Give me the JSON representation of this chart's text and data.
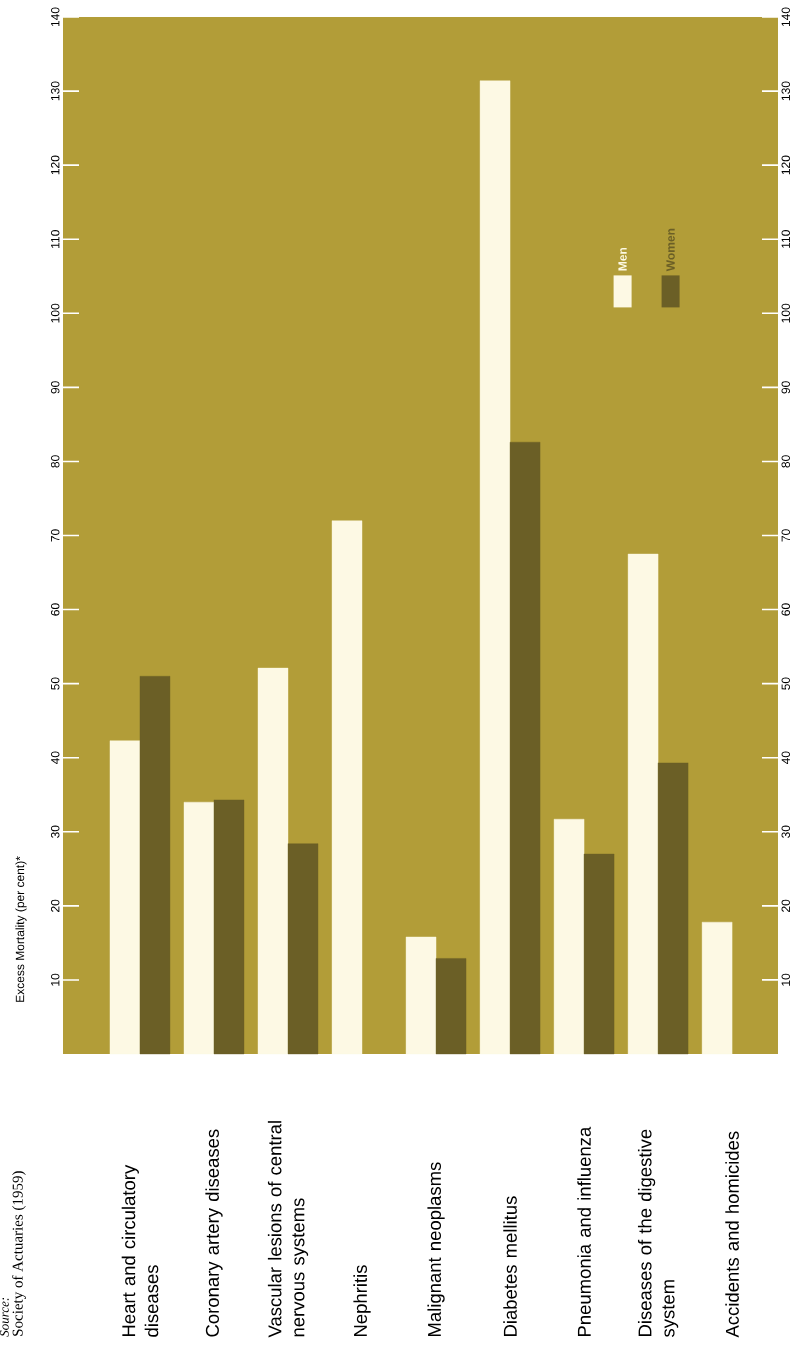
{
  "chart_data": {
    "type": "bar",
    "ylabel": "Excess Mortality (per cent)*",
    "annotations": [
      "Source:",
      "Society of Actuaries (1959)"
    ],
    "categories": [
      "Heart and circulatory diseases",
      "Coronary artery diseases",
      "Vascular lesions of central nervous systems",
      "Nephritis",
      "Malignant neoplasms",
      "Diabetes mellitus",
      "Pneumonia and influenza",
      "Diseases of the digestive system",
      "Accidents and homicides"
    ],
    "series": [
      {
        "name": "Men",
        "color": "#fdf9e4",
        "values": [
          42.3,
          34.0,
          52.1,
          72.0,
          15.8,
          131.4,
          31.7,
          67.5,
          17.8
        ]
      },
      {
        "name": "Women",
        "color": "#6b5f26",
        "values": [
          51.0,
          34.3,
          28.4,
          null,
          12.9,
          82.6,
          27.0,
          39.3,
          null
        ]
      }
    ],
    "ylim": [
      0,
      140
    ],
    "yticks": [
      10,
      20,
      30,
      40,
      50,
      60,
      70,
      80,
      90,
      100,
      110,
      120,
      130,
      140
    ],
    "y2lim": [
      0,
      140
    ],
    "y2ticks": [
      10,
      20,
      30,
      40,
      50,
      60,
      70,
      80,
      90,
      100,
      110,
      120,
      130,
      140
    ],
    "legend": "top right"
  }
}
